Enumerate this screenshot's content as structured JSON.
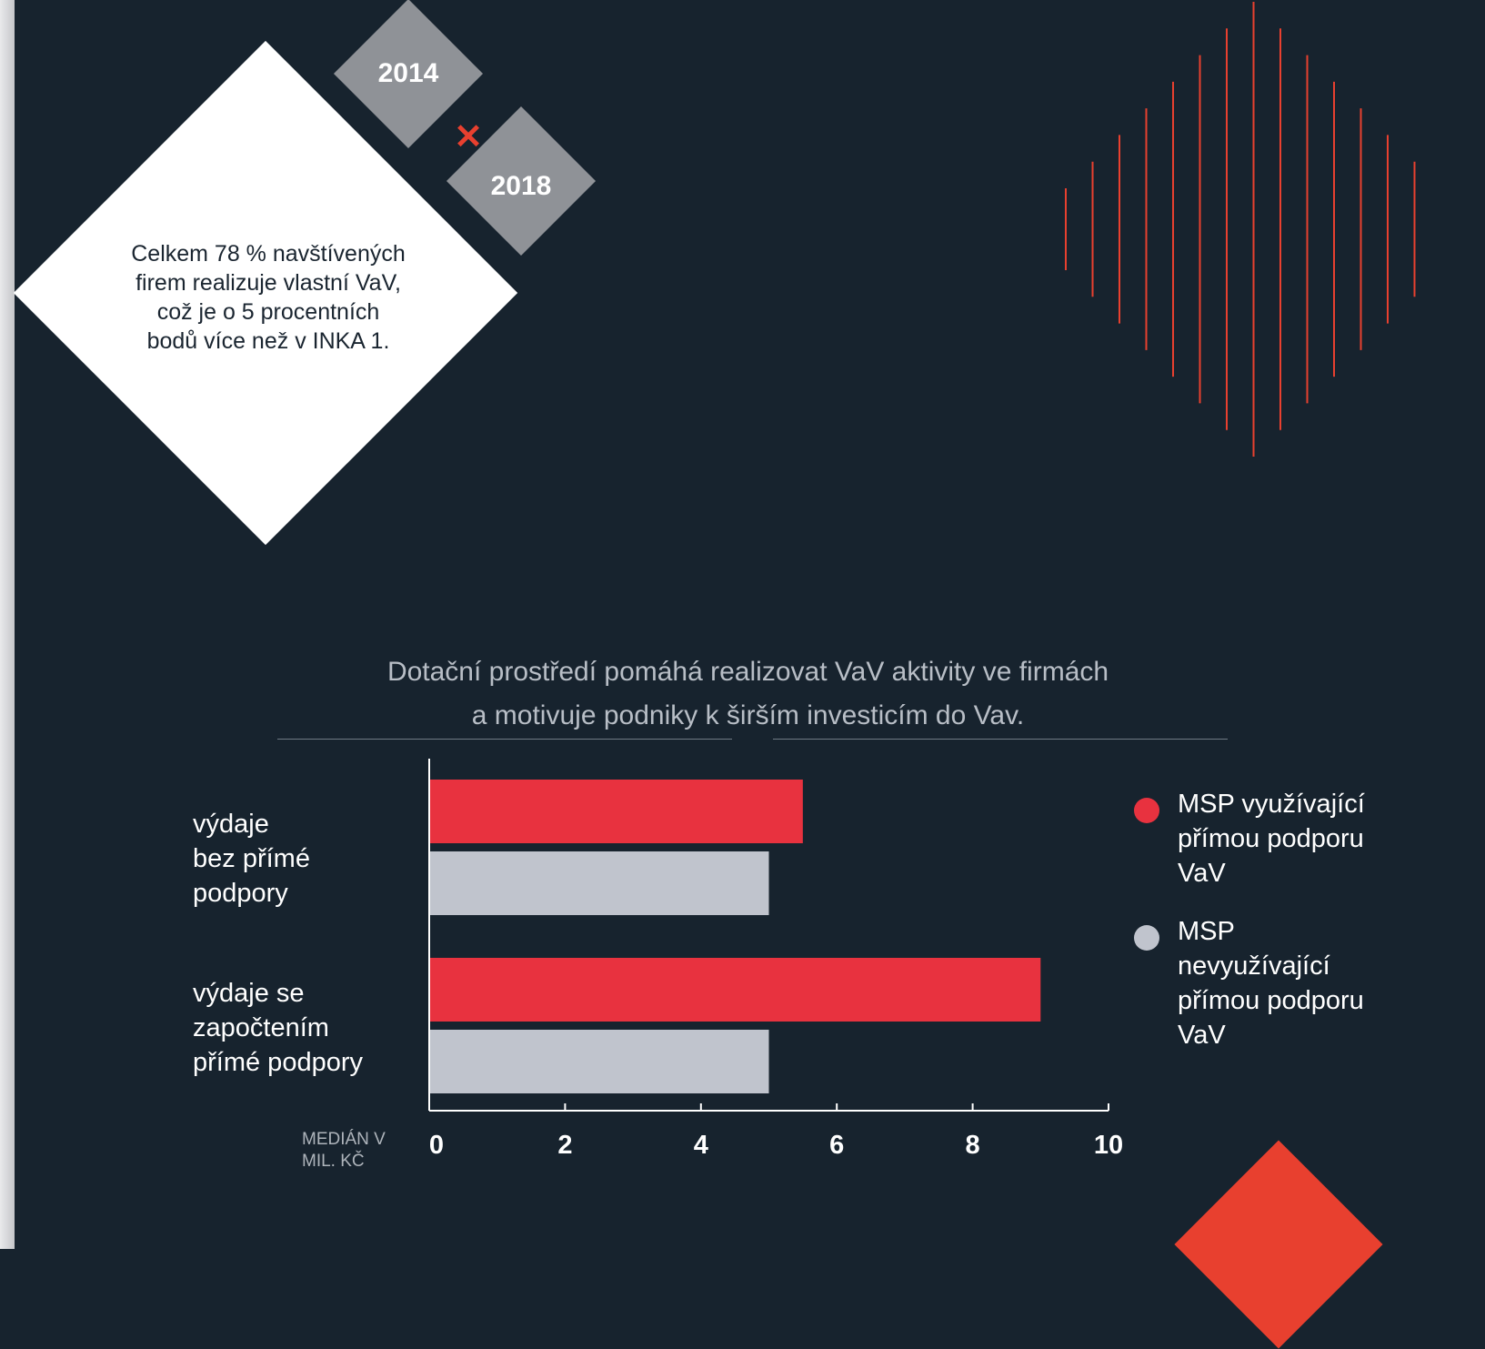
{
  "header": {
    "year_from": "2014",
    "year_to": "2018",
    "statement": "Celkem 78 % navštívených\nfirem realizuje vlastní VaV,\ncož je o 5 procentních\nbodů více než v INKA 1."
  },
  "colors": {
    "background": "#17232e",
    "accent": "#e8323f",
    "secondary": "#c0c4cd",
    "deco_red": "#e8402f"
  },
  "chart_data": {
    "type": "bar",
    "orientation": "horizontal",
    "title": "Dotační prostředí pomáhá realizovat VaV aktivity ve firmách\na motivuje podniky k širším investicím do Vav.",
    "categories": [
      "výdaje\nbez přímé\npodpory",
      "výdaje se\nzapočtením\npřímé podpory"
    ],
    "series": [
      {
        "name": "MSP využívající\npřímou podporu\nVaV",
        "color": "#e8323f",
        "values": [
          5.5,
          9.0
        ]
      },
      {
        "name": "MSP\nnevyužívající\npřímou podporu\nVaV",
        "color": "#c0c4cd",
        "values": [
          5.0,
          5.0
        ]
      }
    ],
    "xlabel": "MEDIÁN V\nMIL. KČ",
    "xlim": [
      0,
      10
    ],
    "xticks": [
      0,
      2,
      4,
      6,
      8,
      10
    ],
    "grid": false,
    "legend": "right"
  }
}
